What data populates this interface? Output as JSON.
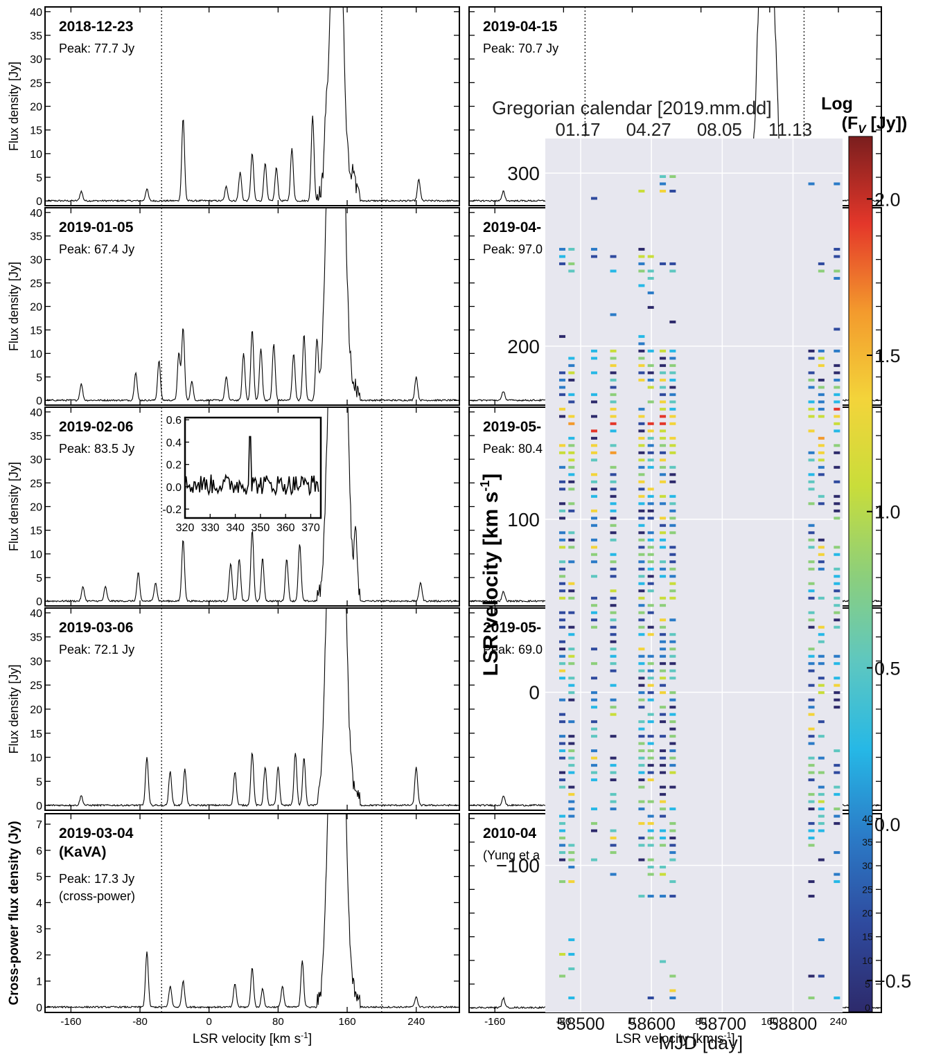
{
  "chart_data": [
    {
      "type": "line",
      "id": "spectra-left",
      "xlabel": "LSR velocity [km s",
      "xlabel_sup": "-1",
      "xlabel_tail": "]",
      "xlim": [
        -190,
        290
      ],
      "x_ticks": [
        -160,
        -80,
        0,
        80,
        160,
        240
      ],
      "vlines": [
        -55,
        200
      ],
      "panels": [
        {
          "label": "2018-12-23",
          "peak_text": "Peak: 77.7 Jy",
          "ylabel": "Flux density [Jy]",
          "ylim": [
            -1,
            41
          ],
          "y_ticks": [
            0,
            5,
            10,
            15,
            20,
            25,
            30,
            35,
            40
          ],
          "features": [
            [
              -148,
              2
            ],
            [
              -72,
              2.5
            ],
            [
              -30,
              17.5
            ],
            [
              20,
              3
            ],
            [
              36,
              6
            ],
            [
              50,
              10
            ],
            [
              65,
              8
            ],
            [
              78,
              7
            ],
            [
              96,
              11
            ],
            [
              120,
              18
            ],
            [
              135,
              9
            ],
            [
              143,
              41
            ],
            [
              152,
              41
            ],
            [
              168,
              4
            ],
            [
              243,
              4.5
            ]
          ]
        },
        {
          "label": "2019-01-05",
          "peak_text": "Peak: 67.4 Jy",
          "ylabel": "Flux density [Jy]",
          "ylim": [
            -1,
            41
          ],
          "y_ticks": [
            0,
            5,
            10,
            15,
            20,
            25,
            30,
            35,
            40
          ],
          "features": [
            [
              -148,
              3.5
            ],
            [
              -85,
              6
            ],
            [
              -58,
              8.5
            ],
            [
              -35,
              10
            ],
            [
              -30,
              15.5
            ],
            [
              -20,
              4
            ],
            [
              20,
              5
            ],
            [
              40,
              10
            ],
            [
              50,
              15
            ],
            [
              60,
              11
            ],
            [
              75,
              12
            ],
            [
              98,
              10
            ],
            [
              110,
              14
            ],
            [
              125,
              13
            ],
            [
              138,
              41
            ],
            [
              148,
              41
            ],
            [
              155,
              41
            ],
            [
              240,
              5
            ]
          ]
        },
        {
          "label": "2019-02-06",
          "peak_text": "Peak: 83.5 Jy",
          "ylabel": "Flux density [Jy]",
          "ylim": [
            -1,
            41
          ],
          "y_ticks": [
            0,
            5,
            10,
            15,
            20,
            25,
            30,
            35,
            40
          ],
          "features": [
            [
              -146,
              3
            ],
            [
              -120,
              3
            ],
            [
              -82,
              6
            ],
            [
              -62,
              4
            ],
            [
              -30,
              13
            ],
            [
              25,
              8
            ],
            [
              35,
              9
            ],
            [
              50,
              15
            ],
            [
              62,
              9
            ],
            [
              90,
              9
            ],
            [
              105,
              12
            ],
            [
              140,
              41
            ],
            [
              150,
              41
            ],
            [
              158,
              41
            ],
            [
              170,
              12
            ],
            [
              245,
              4
            ]
          ]
        },
        {
          "label": "2019-03-06",
          "peak_text": "Peak: 72.1 Jy",
          "ylabel": "Flux density [Jy]",
          "ylim": [
            -1,
            41
          ],
          "y_ticks": [
            0,
            5,
            10,
            15,
            20,
            25,
            30,
            35,
            40
          ],
          "features": [
            [
              -148,
              2
            ],
            [
              -72,
              10
            ],
            [
              -45,
              7
            ],
            [
              -28,
              7.5
            ],
            [
              30,
              7
            ],
            [
              50,
              11
            ],
            [
              65,
              8
            ],
            [
              80,
              8
            ],
            [
              100,
              11
            ],
            [
              110,
              10
            ],
            [
              138,
              41
            ],
            [
              148,
              41
            ],
            [
              156,
              41
            ],
            [
              240,
              8
            ]
          ]
        },
        {
          "label": "2019-03-04",
          "label2": "(KaVA)",
          "peak_text": "Peak: 17.3 Jy",
          "peak_text2": "(cross-power)",
          "ylabel": "Cross-power flux density (Jy)",
          "ylim": [
            -0.2,
            7.4
          ],
          "y_ticks": [
            0,
            1,
            2,
            3,
            4,
            5,
            6,
            7
          ],
          "features": [
            [
              -72,
              2.1
            ],
            [
              -45,
              0.8
            ],
            [
              -30,
              1
            ],
            [
              30,
              0.9
            ],
            [
              50,
              1.5
            ],
            [
              62,
              0.7
            ],
            [
              85,
              0.8
            ],
            [
              108,
              1.8
            ],
            [
              140,
              7.4
            ],
            [
              148,
              7.4
            ],
            [
              156,
              7.4
            ],
            [
              240,
              0.4
            ]
          ]
        }
      ],
      "inset": {
        "xlim": [
          320,
          374
        ],
        "ylim": [
          -0.28,
          0.62
        ],
        "x_ticks": [
          320,
          330,
          340,
          350,
          360,
          370
        ],
        "y_ticks": [
          -0.2,
          0.0,
          0.2,
          0.4,
          0.6
        ],
        "y_tick_labels": [
          "-0.2",
          "0.0",
          "0.2",
          "0.4",
          "0.6"
        ],
        "spike": [
          346,
          0.45
        ]
      }
    },
    {
      "type": "line",
      "id": "spectra-right",
      "xlabel": "LSR velocity [km s",
      "xlabel_sup": "-1",
      "xlabel_tail": "]",
      "xlim": [
        -190,
        290
      ],
      "x_ticks": [
        -160,
        -80,
        0,
        80,
        160,
        240
      ],
      "vlines": [
        -55,
        200
      ],
      "panels": [
        {
          "label": "2019-04-15",
          "peak_text": "Peak: 70.7 Jy",
          "ylim": [
            -1,
            41
          ]
        },
        {
          "label": "2019-04-",
          "peak_text": "Peak: 97.0",
          "ylim": [
            -1,
            41
          ]
        },
        {
          "label": "2019-05-",
          "peak_text": "Peak: 80.4",
          "ylim": [
            -1,
            41
          ]
        },
        {
          "label": "2019-05-",
          "peak_text": "Peak: 69.0",
          "ylim": [
            -1,
            41
          ]
        },
        {
          "label": "2010-04",
          "peak_text": "(Yung et a",
          "ylim": [
            -1,
            41
          ]
        }
      ],
      "features": [
        [
          150,
          41
        ],
        [
          158,
          41
        ],
        [
          165,
          30
        ],
        [
          -150,
          2
        ],
        [
          240,
          5
        ]
      ]
    },
    {
      "type": "heatmap",
      "id": "velocity-time-heatmap",
      "xlabel": "MJD [day]",
      "ylabel": "LSR velocity [km s",
      "ylabel_sup": "-1",
      "ylabel_tail": "]",
      "top_label": "Gregorian calendar [2019.mm.dd]",
      "top_ticks": [
        "01.17",
        "04.27",
        "08.05",
        "11.13"
      ],
      "top_tick_mjd": [
        58500,
        58600,
        58700,
        58800
      ],
      "xlim": [
        58450,
        58870
      ],
      "ylim": [
        -185,
        320
      ],
      "x_ticks": [
        58500,
        58600,
        58700,
        58800
      ],
      "x_tick_labels": [
        "58500",
        "58600",
        "58700",
        "58800"
      ],
      "y_ticks": [
        -100,
        0,
        100,
        200,
        300
      ],
      "y_tick_labels": [
        "−100",
        "0",
        "100",
        "200",
        "300"
      ],
      "epochs_mjd": [
        58474,
        58487,
        58519,
        58546,
        58586,
        58599,
        58616,
        58630,
        58826,
        58840,
        58862
      ],
      "colorbar": {
        "title": "Log",
        "title2": "(F",
        "title2_sub": "V",
        "title2_tail": " [Jy])",
        "range": [
          -0.6,
          2.2
        ],
        "ticks": [
          -0.5,
          0.0,
          0.5,
          1.0,
          1.5,
          2.0
        ],
        "tick_labels": [
          "−0.5",
          "0.0",
          "0.5",
          "1.0",
          "1.5",
          "2.0"
        ],
        "inner_ticks": [
          0,
          5,
          10,
          15,
          20,
          25,
          30,
          35,
          40
        ]
      },
      "colors": [
        "#2d2a6b",
        "#2f4a9e",
        "#2b7bc7",
        "#26b8e6",
        "#5ec7c0",
        "#8dcf7a",
        "#c9dd3a",
        "#f3d43a",
        "#f39a2d",
        "#e4372a",
        "#7a1e1e"
      ]
    }
  ]
}
